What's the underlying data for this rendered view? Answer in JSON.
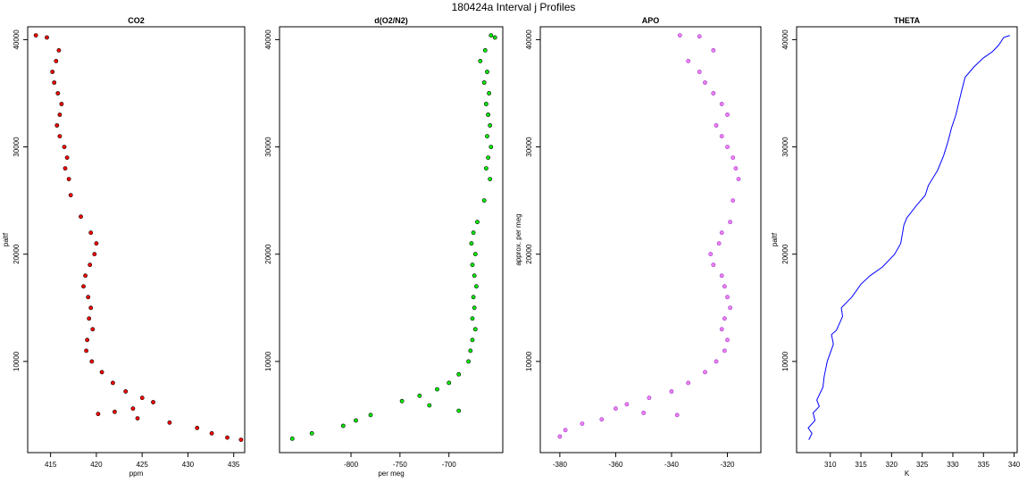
{
  "title": "180424a   Interval j Profiles",
  "chart_data": [
    {
      "type": "scatter",
      "title": "CO2",
      "xlabel": "ppm",
      "ylabel": "paltf",
      "xlim": [
        412.5,
        436.2
      ],
      "ylim": [
        1500,
        41200
      ],
      "xticks": [
        415,
        420,
        425,
        430,
        435
      ],
      "yticks": [
        10000,
        20000,
        30000,
        40000
      ],
      "color": "#ff0000",
      "edge_color": "#000000",
      "series": [
        {
          "x": [
            413.4,
            414.6,
            415.9,
            415.6,
            415.2,
            415.4,
            415.8,
            416.2,
            416.0,
            415.7,
            416.0,
            416.5,
            416.8,
            416.6,
            417.0,
            417.2,
            418.3,
            419.4,
            420.0,
            419.8,
            419.3,
            418.8,
            418.6,
            419.1,
            419.4,
            419.2,
            419.6,
            419.0,
            418.9,
            419.5,
            420.6,
            421.8,
            423.2,
            425.0,
            426.2,
            424.0,
            422.0,
            420.2,
            424.5,
            428.0,
            431.0,
            432.6,
            434.3,
            435.8
          ],
          "y": [
            40400,
            40200,
            39000,
            38000,
            37000,
            36000,
            35000,
            34000,
            33000,
            32000,
            31000,
            30000,
            29000,
            28000,
            27000,
            25500,
            23500,
            22000,
            21000,
            20000,
            19000,
            18000,
            17000,
            16000,
            15000,
            14000,
            13000,
            12000,
            11000,
            10000,
            9000,
            8000,
            7200,
            6600,
            6200,
            5600,
            5300,
            5100,
            4700,
            4300,
            3800,
            3300,
            2900,
            2700
          ]
        }
      ]
    },
    {
      "type": "scatter",
      "title": "d(O2/N2)",
      "xlabel": "per meg",
      "ylabel": "",
      "xlim": [
        -873,
        -645
      ],
      "ylim": [
        1500,
        41200
      ],
      "xticks": [
        -800,
        -750,
        -700
      ],
      "yticks": [
        10000,
        20000,
        30000,
        40000
      ],
      "color": "#00ee00",
      "edge_color": "#000000",
      "series": [
        {
          "x": [
            -657,
            -653,
            -663,
            -668,
            -661,
            -664,
            -659,
            -662,
            -660,
            -658,
            -661,
            -657,
            -660,
            -662,
            -658,
            -664,
            -671,
            -675,
            -677,
            -673,
            -676,
            -674,
            -672,
            -675,
            -674,
            -676,
            -673,
            -676,
            -678,
            -680,
            -690,
            -700,
            -712,
            -730,
            -748,
            -720,
            -690,
            -780,
            -795,
            -808,
            -840,
            -860
          ],
          "y": [
            40400,
            40200,
            39000,
            38000,
            37000,
            36000,
            35000,
            34000,
            33000,
            32000,
            31000,
            30000,
            29000,
            28000,
            27000,
            25000,
            23000,
            22000,
            21000,
            20000,
            19000,
            18000,
            17000,
            16000,
            15000,
            14000,
            13000,
            12000,
            11000,
            10000,
            8800,
            8000,
            7400,
            6800,
            6300,
            5900,
            5400,
            5000,
            4500,
            4000,
            3300,
            2800
          ]
        }
      ]
    },
    {
      "type": "scatter",
      "title": "APO",
      "xlabel": "",
      "ylabel": "approx. per meg",
      "xlim": [
        -387,
        -308
      ],
      "ylim": [
        1500,
        41200
      ],
      "xticks": [
        -380,
        -360,
        -340,
        -320
      ],
      "yticks": [
        10000,
        20000,
        30000,
        40000
      ],
      "color": "#ee82ee",
      "edge_color": "#9932cc",
      "series": [
        {
          "x": [
            -337,
            -330,
            -325,
            -334,
            -330,
            -328,
            -325,
            -322,
            -320,
            -324,
            -322,
            -320,
            -318,
            -317,
            -316,
            -318,
            -319,
            -322,
            -323,
            -326,
            -325,
            -322,
            -321,
            -320,
            -319,
            -321,
            -322,
            -320,
            -321,
            -324,
            -328,
            -334,
            -340,
            -348,
            -356,
            -360,
            -350,
            -338,
            -365,
            -372,
            -378,
            -380
          ],
          "y": [
            40400,
            40300,
            39000,
            38000,
            37000,
            36000,
            35000,
            34000,
            33000,
            32000,
            31000,
            30000,
            29000,
            28000,
            27000,
            25000,
            23000,
            22000,
            21000,
            20000,
            19000,
            18000,
            17000,
            16000,
            15000,
            14000,
            13000,
            12000,
            11000,
            10000,
            9000,
            8000,
            7200,
            6600,
            6000,
            5600,
            5200,
            5000,
            4600,
            4200,
            3600,
            3000
          ]
        }
      ]
    },
    {
      "type": "line",
      "title": "THETA",
      "xlabel": "K",
      "ylabel": "paltf",
      "xlim": [
        304.5,
        340.5
      ],
      "ylim": [
        1500,
        41200
      ],
      "xticks": [
        310,
        315,
        320,
        325,
        330,
        335,
        340
      ],
      "yticks": [
        10000,
        20000,
        30000,
        40000
      ],
      "color": "#0000ff",
      "series": [
        {
          "x": [
            306.5,
            307.0,
            306.4,
            307.5,
            307.2,
            308.2,
            307.8,
            308.8,
            309.0,
            309.5,
            310.5,
            310.2,
            311.0,
            312.0,
            311.8,
            313.5,
            315.0,
            316.5,
            318.5,
            320.5,
            321.5,
            321.8,
            322.0,
            322.5,
            324.0,
            325.5,
            326.0,
            327.5,
            328.5,
            329.2,
            329.8,
            330.5,
            331.0,
            331.5,
            332.0,
            333.5,
            335.0,
            336.5,
            337.5,
            338.3,
            339.3
          ],
          "y": [
            2700,
            3300,
            3800,
            4500,
            5200,
            5800,
            6400,
            7600,
            8600,
            10000,
            11600,
            12500,
            12900,
            14200,
            15000,
            16000,
            17200,
            18000,
            18800,
            20000,
            21000,
            22000,
            22700,
            23400,
            24500,
            25500,
            26400,
            27800,
            29200,
            30500,
            31800,
            33000,
            34200,
            35400,
            36500,
            37500,
            38300,
            38900,
            39500,
            40200,
            40400
          ]
        }
      ]
    }
  ]
}
